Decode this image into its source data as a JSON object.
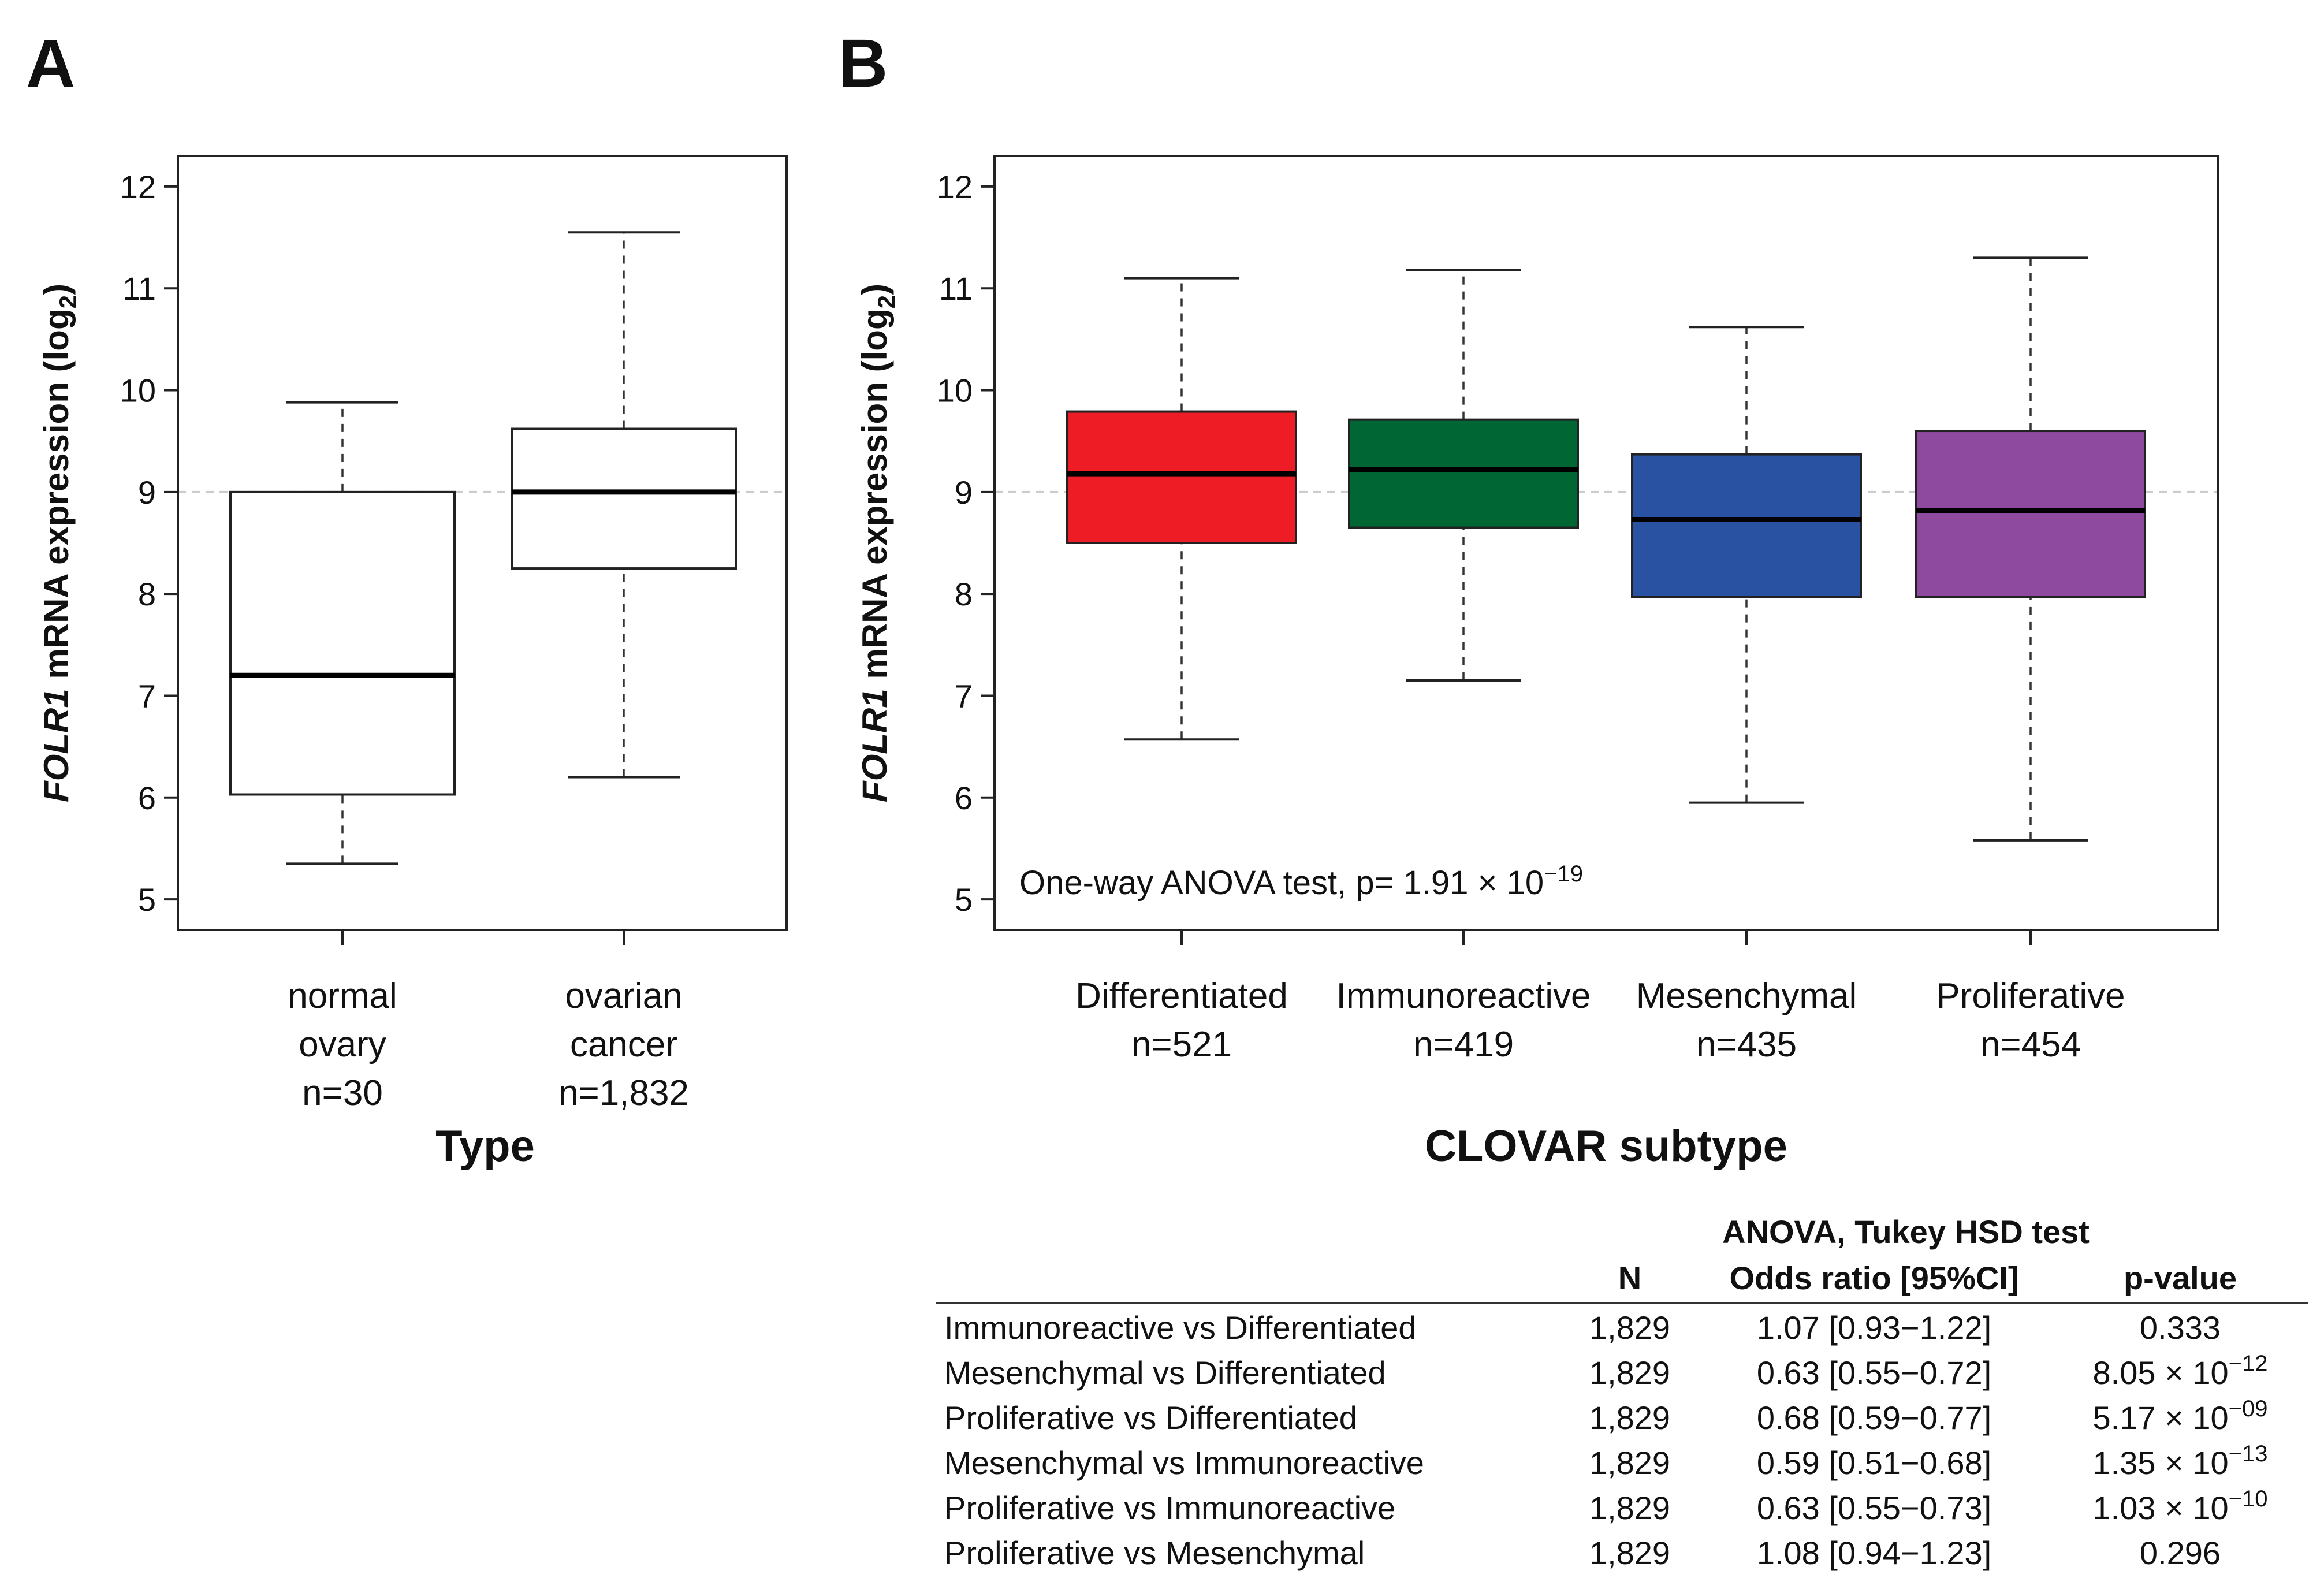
{
  "chart_data": [
    {
      "type": "boxplot",
      "panel_label": "A",
      "ylabel_italic": "FOLR1",
      "ylabel_rest": " mRNA expression (log",
      "ylabel_sub": "2",
      "ylabel_close": ")",
      "ylim": [
        4.7,
        12.3
      ],
      "yticks": [
        "5",
        "6",
        "7",
        "8",
        "9",
        "10",
        "11",
        "12"
      ],
      "reference_line": 9,
      "xlabel": "Type",
      "categories": [
        {
          "lines": [
            "normal",
            "ovary",
            "n=30"
          ],
          "whisker_low": 5.35,
          "q1": 6.03,
          "median": 7.2,
          "q3": 9.0,
          "whisker_high": 9.88,
          "fill": "#ffffff"
        },
        {
          "lines": [
            "ovarian",
            "cancer",
            "n=1,832"
          ],
          "whisker_low": 6.2,
          "q1": 8.25,
          "median": 9.0,
          "q3": 9.62,
          "whisker_high": 11.55,
          "fill": "#ffffff"
        }
      ]
    },
    {
      "type": "boxplot",
      "panel_label": "B",
      "ylabel_italic": "FOLR1",
      "ylabel_rest": " mRNA expression (log",
      "ylabel_sub": "2",
      "ylabel_close": ")",
      "ylim": [
        4.7,
        12.3
      ],
      "yticks": [
        "5",
        "6",
        "7",
        "8",
        "9",
        "10",
        "11",
        "12"
      ],
      "reference_line": 9,
      "xlabel": "CLOVAR subtype",
      "annotation": "One-way ANOVA test, p= 1.91 × 10",
      "annotation_exp": "−19",
      "categories": [
        {
          "lines": [
            "Differentiated",
            "n=521"
          ],
          "whisker_low": 6.57,
          "q1": 8.5,
          "median": 9.18,
          "q3": 9.79,
          "whisker_high": 11.1,
          "fill": "#ee1c25"
        },
        {
          "lines": [
            "Immunoreactive",
            "n=419"
          ],
          "whisker_low": 7.15,
          "q1": 8.65,
          "median": 9.22,
          "q3": 9.71,
          "whisker_high": 11.18,
          "fill": "#006633"
        },
        {
          "lines": [
            "Mesenchymal",
            "n=435"
          ],
          "whisker_low": 5.95,
          "q1": 7.97,
          "median": 8.73,
          "q3": 9.37,
          "whisker_high": 10.62,
          "fill": "#2952a3"
        },
        {
          "lines": [
            "Proliferative",
            "n=454"
          ],
          "whisker_low": 5.58,
          "q1": 7.97,
          "median": 8.82,
          "q3": 9.6,
          "whisker_high": 11.3,
          "fill": "#8e4a9e"
        }
      ]
    }
  ],
  "table": {
    "group_header": "ANOVA, Tukey HSD test",
    "columns": [
      "",
      "N",
      "Odds ratio [95%CI]",
      "p-value"
    ],
    "rows": [
      {
        "comparison": "Immunoreactive vs Differentiated",
        "n": "1,829",
        "or": "1.07 [0.93−1.22]",
        "p": "0.333",
        "p_exp": ""
      },
      {
        "comparison": "Mesenchymal vs Differentiated",
        "n": "1,829",
        "or": "0.63 [0.55−0.72]",
        "p": "8.05 × 10",
        "p_exp": "−12"
      },
      {
        "comparison": "Proliferative vs Differentiated",
        "n": "1,829",
        "or": "0.68 [0.59−0.77]",
        "p": "5.17 × 10",
        "p_exp": "−09"
      },
      {
        "comparison": "Mesenchymal vs Immunoreactive",
        "n": "1,829",
        "or": "0.59 [0.51−0.68]",
        "p": "1.35 × 10",
        "p_exp": "−13"
      },
      {
        "comparison": "Proliferative vs Immunoreactive",
        "n": "1,829",
        "or": "0.63 [0.55−0.73]",
        "p": "1.03 × 10",
        "p_exp": "−10"
      },
      {
        "comparison": "Proliferative vs Mesenchymal",
        "n": "1,829",
        "or": "1.08 [0.94−1.23]",
        "p": "0.296",
        "p_exp": ""
      }
    ]
  }
}
